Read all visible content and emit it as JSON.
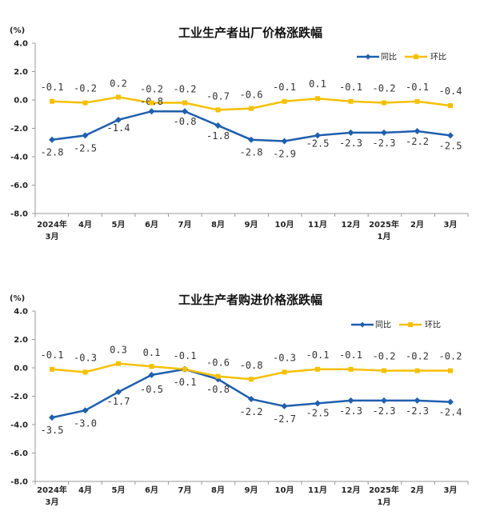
{
  "chart_data": [
    {
      "type": "line",
      "title": "工业生产者出厂价格涨跌幅",
      "unit": "(%)",
      "categories": [
        [
          "2024年",
          "3月"
        ],
        [
          "4月"
        ],
        [
          "5月"
        ],
        [
          "6月"
        ],
        [
          "7月"
        ],
        [
          "8月"
        ],
        [
          "9月"
        ],
        [
          "10月"
        ],
        [
          "11月"
        ],
        [
          "12月"
        ],
        [
          "2025年",
          "1月"
        ],
        [
          "2月"
        ],
        [
          "3月"
        ]
      ],
      "ylim": [
        -8.0,
        4.0
      ],
      "yticks": [
        "4.0",
        "2.0",
        "0.0",
        "-2.0",
        "-4.0",
        "-6.0",
        "-8.0"
      ],
      "legend_position": "top-right",
      "series": [
        {
          "name": "同比",
          "color": "#1f5fad",
          "values": [
            -2.8,
            -2.5,
            -1.4,
            -0.8,
            -0.8,
            -1.8,
            -2.8,
            -2.9,
            -2.5,
            -2.3,
            -2.3,
            -2.2,
            -2.5
          ],
          "labels": [
            "-2.8",
            "-2.5",
            "-1.4",
            "-0.8",
            "-0.8",
            "-1.8",
            "-2.8",
            "-2.9",
            "-2.5",
            "-2.3",
            "-2.3",
            "-2.2",
            "-2.5"
          ]
        },
        {
          "name": "环比",
          "color": "#f5c000",
          "values": [
            -0.1,
            -0.2,
            0.2,
            -0.2,
            -0.2,
            -0.7,
            -0.6,
            -0.1,
            0.1,
            -0.1,
            -0.2,
            -0.1,
            -0.4
          ],
          "labels": [
            "-0.1",
            "-0.2",
            "0.2",
            "-0.2",
            "-0.2",
            "-0.7",
            "-0.6",
            "-0.1",
            "0.1",
            "-0.1",
            "-0.2",
            "-0.1",
            "-0.4"
          ]
        }
      ]
    },
    {
      "type": "line",
      "title": "工业生产者购进价格涨跌幅",
      "unit": "(%)",
      "categories": [
        [
          "2024年",
          "3月"
        ],
        [
          "4月"
        ],
        [
          "5月"
        ],
        [
          "6月"
        ],
        [
          "7月"
        ],
        [
          "8月"
        ],
        [
          "9月"
        ],
        [
          "10月"
        ],
        [
          "11月"
        ],
        [
          "12月"
        ],
        [
          "2025年",
          "1月"
        ],
        [
          "2月"
        ],
        [
          "3月"
        ]
      ],
      "ylim": [
        -8.0,
        4.0
      ],
      "yticks": [
        "4.0",
        "2.0",
        "0.0",
        "-2.0",
        "-4.0",
        "-6.0",
        "-8.0"
      ],
      "legend_position": "top-right",
      "series": [
        {
          "name": "同比",
          "color": "#1f5fad",
          "values": [
            -3.5,
            -3.0,
            -1.7,
            -0.5,
            -0.1,
            -0.8,
            -2.2,
            -2.7,
            -2.5,
            -2.3,
            -2.3,
            -2.3,
            -2.4
          ],
          "labels": [
            "-3.5",
            "-3.0",
            "-1.7",
            "-0.5",
            "-0.1",
            "-0.8",
            "-2.2",
            "-2.7",
            "-2.5",
            "-2.3",
            "-2.3",
            "-2.3",
            "-2.4"
          ]
        },
        {
          "name": "环比",
          "color": "#f5c000",
          "values": [
            -0.1,
            -0.3,
            0.3,
            0.1,
            -0.1,
            -0.6,
            -0.8,
            -0.3,
            -0.1,
            -0.1,
            -0.2,
            -0.2,
            -0.2
          ],
          "labels": [
            "-0.1",
            "-0.3",
            "0.3",
            "0.1",
            "-0.1",
            "-0.6",
            "-0.8",
            "-0.3",
            "-0.1",
            "-0.1",
            "-0.2",
            "-0.2",
            "-0.2"
          ]
        }
      ]
    }
  ]
}
